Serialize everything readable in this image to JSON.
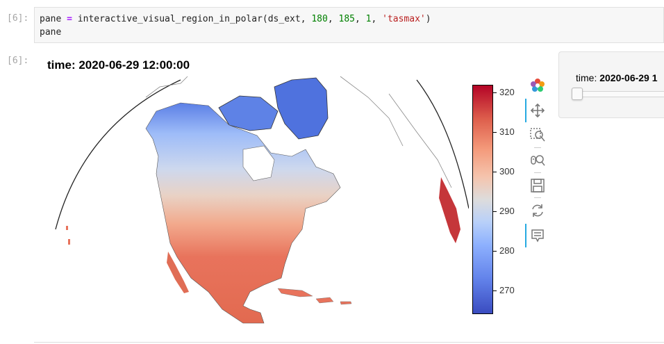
{
  "input_cell": {
    "prompt": "[6]:",
    "code_line1": {
      "var": "pane",
      "op": " = ",
      "func": "interactive_visual_region_in_polar",
      "args_start": "(ds_ext, ",
      "num1": "180",
      "sep1": ", ",
      "num2": "185",
      "sep2": ", ",
      "num3": "1",
      "sep3": ", ",
      "str": "'tasmax'",
      "close": ")"
    },
    "code_line2": "pane"
  },
  "output_cell": {
    "prompt": "[6]:"
  },
  "plot": {
    "title": "time: 2020-06-29 12:00:00",
    "colorbar": {
      "min": 264,
      "max": 322,
      "ticks": [
        "320",
        "310",
        "300",
        "290",
        "280",
        "270"
      ],
      "colormap": "coolwarm"
    }
  },
  "toolbar": {
    "tools": [
      "bokeh-logo-icon",
      "pan-icon",
      "box-zoom-icon",
      "wheel-zoom-icon",
      "save-icon",
      "reset-icon",
      "hover-icon"
    ]
  },
  "widget": {
    "slider_label_prefix": "time: ",
    "slider_value": "2020-06-29 1",
    "slider_position": 0
  }
}
